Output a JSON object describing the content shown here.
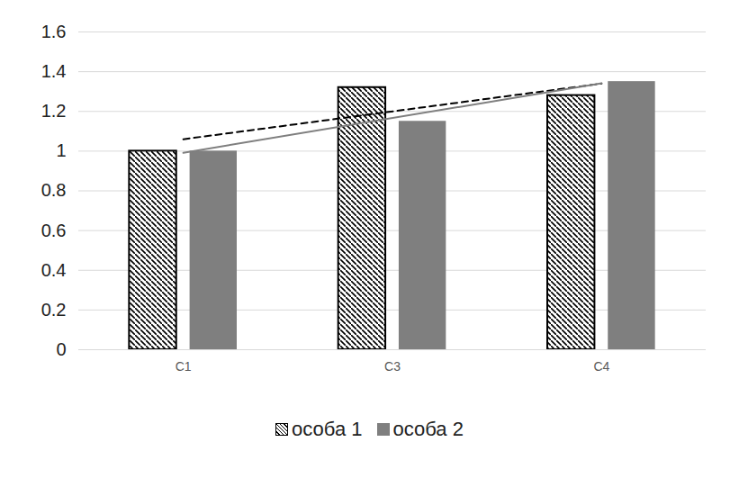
{
  "chart_data": {
    "type": "bar",
    "categories": [
      "C1",
      "C3",
      "C4"
    ],
    "series": [
      {
        "name": "особа 1",
        "color": "#000000",
        "values": [
          1.0,
          1.32,
          1.28
        ],
        "line_style": "dashed"
      },
      {
        "name": "особа 2",
        "color": "#7f7f7f",
        "values": [
          1.0,
          1.15,
          1.35
        ],
        "line_style": "solid"
      }
    ],
    "ylim": [
      0,
      1.6
    ],
    "yticks": [
      0,
      0.2,
      0.4,
      0.6,
      0.8,
      1,
      1.2,
      1.4,
      1.6
    ],
    "grid": true,
    "legend": "bottom"
  }
}
